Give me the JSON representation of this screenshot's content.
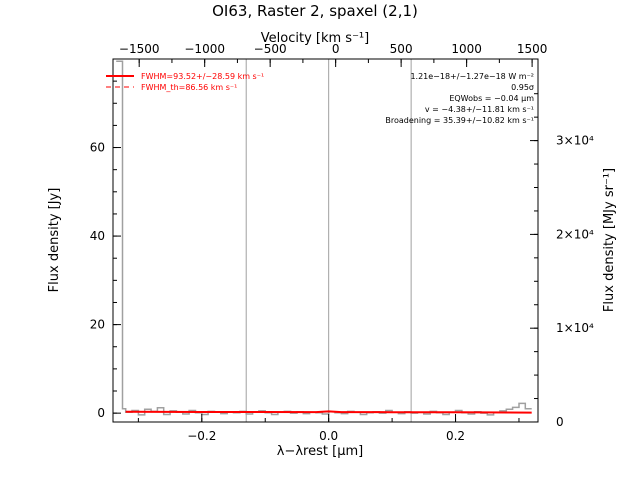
{
  "chart_data": {
    "type": "line",
    "title": "OI63, Raster 2, spaxel (2,1)",
    "xlabel": "λ−λrest [μm]",
    "ylabel": "Flux density [Jy]",
    "y2label": "Flux density [MJy sr⁻¹]",
    "top_axis_label": "Velocity [km s⁻¹]",
    "xlim": [
      -0.34,
      0.33
    ],
    "ylim": [
      -2,
      80
    ],
    "y2lim": [
      -2,
      38700
    ],
    "top_axis_lim": [
      -1700,
      1545
    ],
    "x_ticks": [
      -0.2,
      0.0,
      0.2
    ],
    "x_tick_labels": [
      "−0.2",
      "0.0",
      "0.2"
    ],
    "y_ticks": [
      0,
      20,
      40,
      60
    ],
    "y_tick_labels": [
      "0",
      "20",
      "40",
      "60"
    ],
    "y2_ticks": [
      0,
      10000,
      20000,
      30000
    ],
    "y2_tick_labels": [
      "0",
      "1×10⁴",
      "2×10⁴",
      "3×10⁴"
    ],
    "top_ticks": [
      -1500,
      -1000,
      -500,
      0,
      500,
      1000,
      1500
    ],
    "top_tick_labels": [
      "−1500",
      "−1000",
      "−500",
      "0",
      "500",
      "1000",
      "1500"
    ],
    "vertical_lines": [
      -0.13,
      0.0,
      0.13
    ],
    "legend": {
      "placement": "top-left",
      "entries": [
        {
          "label": "FWHM=93.52+/−28.59 km s⁻¹",
          "color": "#ff0000",
          "style": "solid"
        },
        {
          "label": "FWHM_th=86.56 km s⁻¹",
          "color": "#ff0000",
          "style": "dashed"
        }
      ]
    },
    "annotations": [
      "1.21e−18+/−1.27e−18 W m⁻²",
      "0.95σ",
      "EQWobs = −0.04 μm",
      "v = −4.38+/−11.81 km s⁻¹",
      "Broadening = 35.39+/−10.82 km s⁻¹"
    ],
    "series": [
      {
        "name": "data",
        "color": "#a0a0a0",
        "x": [
          -0.335,
          -0.325,
          -0.32,
          -0.31,
          -0.3,
          -0.29,
          -0.28,
          -0.27,
          -0.26,
          -0.25,
          -0.24,
          -0.23,
          -0.22,
          -0.21,
          -0.2,
          -0.19,
          -0.18,
          -0.17,
          -0.16,
          -0.15,
          -0.14,
          -0.13,
          -0.12,
          -0.11,
          -0.1,
          -0.09,
          -0.08,
          -0.07,
          -0.06,
          -0.05,
          -0.04,
          -0.03,
          -0.02,
          -0.01,
          0.0,
          0.01,
          0.02,
          0.03,
          0.04,
          0.05,
          0.06,
          0.07,
          0.08,
          0.09,
          0.1,
          0.11,
          0.12,
          0.13,
          0.14,
          0.15,
          0.16,
          0.17,
          0.18,
          0.19,
          0.2,
          0.21,
          0.22,
          0.23,
          0.24,
          0.25,
          0.26,
          0.27,
          0.28,
          0.29,
          0.3,
          0.31
        ],
        "y": [
          79.5,
          1.0,
          0.2,
          0.6,
          -0.4,
          0.9,
          0.4,
          1.2,
          -0.3,
          0.5,
          0.2,
          -0.2,
          0.6,
          0.1,
          -0.3,
          0.4,
          0.2,
          -0.1,
          0.3,
          0.1,
          0.4,
          -0.2,
          0.2,
          0.5,
          0.1,
          -0.3,
          0.2,
          0.4,
          0.0,
          0.3,
          -0.1,
          0.2,
          0.1,
          -0.2,
          0.3,
          0.1,
          -0.1,
          0.4,
          0.2,
          -0.3,
          0.1,
          0.3,
          0.0,
          0.6,
          0.2,
          -0.1,
          0.3,
          0.0,
          0.2,
          -0.2,
          0.4,
          0.1,
          -0.3,
          0.2,
          0.6,
          0.1,
          -0.2,
          0.3,
          0.0,
          -0.4,
          0.2,
          0.5,
          0.9,
          1.3,
          2.2,
          1.0
        ]
      },
      {
        "name": "fit",
        "color": "#ff0000",
        "x": [
          -0.32,
          -0.2,
          -0.1,
          -0.02,
          0.0,
          0.02,
          0.1,
          0.2,
          0.32
        ],
        "y": [
          0.3,
          0.27,
          0.25,
          0.24,
          0.4,
          0.24,
          0.21,
          0.18,
          0.12
        ]
      }
    ]
  }
}
